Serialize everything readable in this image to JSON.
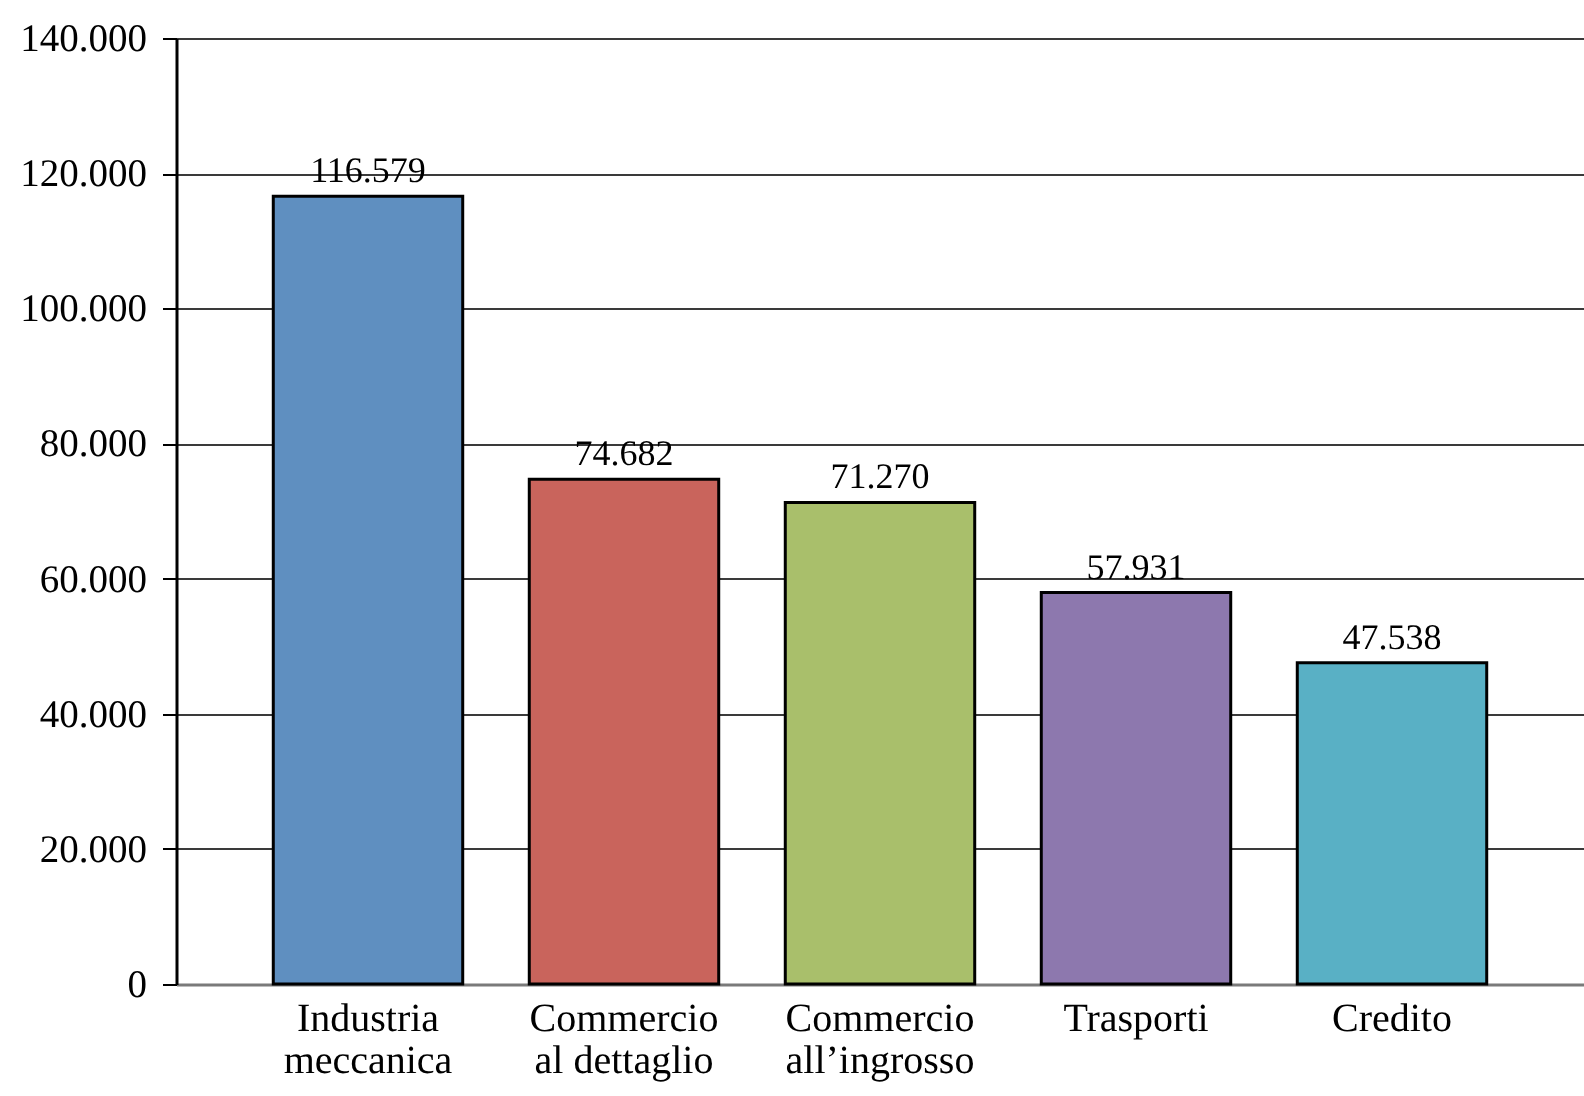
{
  "chart_data": {
    "type": "bar",
    "categories": [
      "Industria meccanica",
      "Commercio al dettaglio",
      "Commercio all’ingrosso",
      "Trasporti",
      "Credito"
    ],
    "values": [
      116579,
      74682,
      71270,
      57931,
      47538
    ],
    "value_labels": [
      "116.579",
      "74.682",
      "71.270",
      "57.931",
      "47.538"
    ],
    "colors": [
      "#5f8fc0",
      "#c9645c",
      "#a9bf6b",
      "#8d78ae",
      "#59b0c5"
    ],
    "ylim": [
      0,
      140000
    ],
    "yticks": [
      0,
      {
        "value": 20000,
        "label": "20.000"
      },
      {
        "value": 40000,
        "label": "40.000"
      },
      {
        "value": 60000,
        "label": "60.000"
      },
      {
        "value": 80000,
        "label": "80.000"
      },
      {
        "value": 100000,
        "label": "100.000"
      },
      {
        "value": 120000,
        "label": "120.000"
      },
      {
        "value": 140000,
        "label": "140.000"
      }
    ],
    "grid": "y"
  }
}
